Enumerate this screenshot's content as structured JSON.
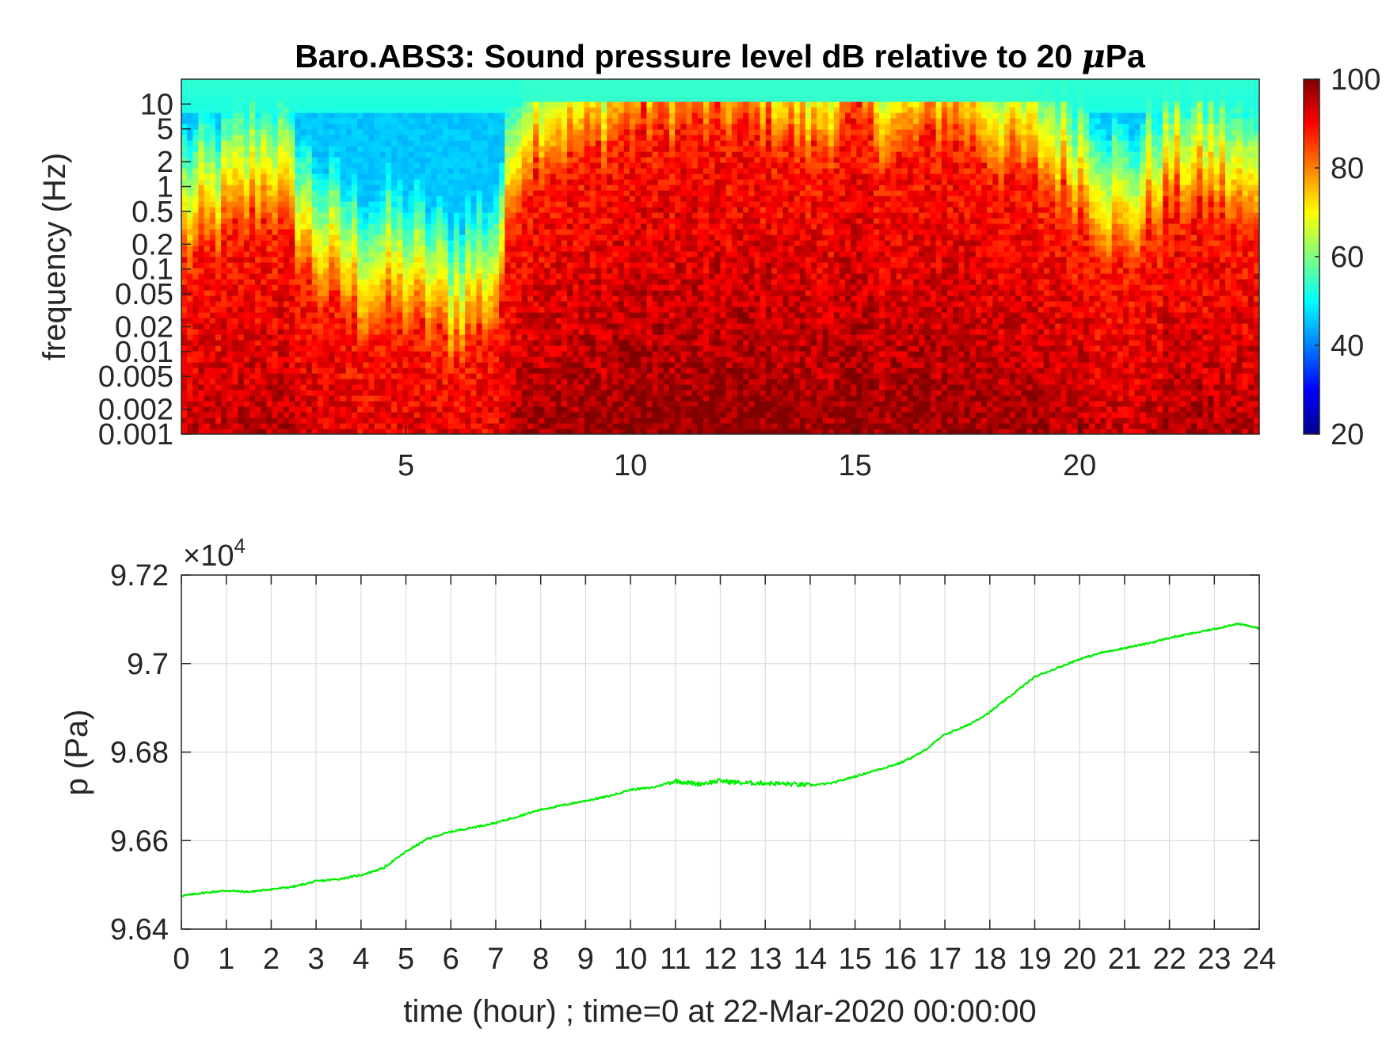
{
  "chart_data": [
    {
      "type": "heatmap",
      "title": "Baro.ABS3: Sound pressure level dB relative to 20 μPa",
      "title_prefix": "Baro.ABS3: Sound pressure level dB relative to 20 ",
      "title_mu": "μ",
      "title_suffix": "Pa",
      "ylabel": "frequency (Hz)",
      "y_scale": "log",
      "xlim": [
        0,
        24
      ],
      "ylim": [
        0.001,
        20
      ],
      "x_ticks": [
        5,
        10,
        15,
        20
      ],
      "y_ticks": [
        0.001,
        0.002,
        0.005,
        0.01,
        0.02,
        0.05,
        0.1,
        0.2,
        0.5,
        1,
        2,
        5,
        10
      ],
      "y_tick_labels": [
        "0.001",
        "0.002",
        "0.005",
        "0.01",
        "0.02",
        "0.05",
        "0.1",
        "0.2",
        "0.5",
        "1",
        "2",
        "5",
        "10"
      ],
      "colormap": "jet",
      "colorbar": {
        "range": [
          20,
          100
        ],
        "ticks": [
          20,
          40,
          60,
          80,
          100
        ],
        "labels": [
          "20",
          "40",
          "60",
          "80",
          "100"
        ]
      },
      "colors": {
        "high": "#8b0000",
        "mid": "#ffd400",
        "low": "#00d6e8",
        "min": "#00008f"
      },
      "time_profile": {
        "hours": [
          0,
          1,
          2,
          3,
          4,
          5,
          6,
          7,
          7.5,
          8,
          9,
          10,
          11,
          12,
          13,
          14,
          15,
          16,
          17,
          18,
          19,
          20,
          21,
          22,
          23,
          24
        ],
        "high_level_top_hz": [
          0.1,
          0.2,
          0.5,
          0.05,
          0.02,
          0.02,
          0.01,
          0.02,
          1,
          2,
          2,
          5,
          5,
          5,
          5,
          2,
          5,
          2,
          5,
          2,
          1,
          0.5,
          0.1,
          0.5,
          0.5,
          0.2
        ]
      }
    },
    {
      "type": "line",
      "ylabel": "p (Pa)",
      "xlabel": "time (hour) ; time=0 at 22-Mar-2020 00:00:00",
      "xlim": [
        0,
        24
      ],
      "ylim": [
        96400,
        97200
      ],
      "x_ticks": [
        0,
        1,
        2,
        3,
        4,
        5,
        6,
        7,
        8,
        9,
        10,
        11,
        12,
        13,
        14,
        15,
        16,
        17,
        18,
        19,
        20,
        21,
        22,
        23,
        24
      ],
      "x_tick_labels": [
        "0",
        "1",
        "2",
        "3",
        "4",
        "5",
        "6",
        "7",
        "8",
        "9",
        "10",
        "11",
        "12",
        "13",
        "14",
        "15",
        "16",
        "17",
        "18",
        "19",
        "20",
        "21",
        "22",
        "23",
        "24"
      ],
      "y_ticks": [
        96400,
        96600,
        96800,
        97000,
        97200
      ],
      "y_tick_labels": [
        "9.64",
        "9.66",
        "9.68",
        "9.7",
        "9.72"
      ],
      "y_exponent_base": "×10",
      "y_exponent_power": "4",
      "grid": true,
      "line_color": "#00ee00",
      "series": [
        {
          "x": [
            0,
            0.5,
            1,
            1.5,
            2,
            2.5,
            3,
            3.5,
            4,
            4.5,
            5,
            5.5,
            6,
            6.5,
            7,
            7.5,
            8,
            8.5,
            9,
            9.5,
            10,
            10.5,
            11,
            11.5,
            12,
            12.5,
            13,
            13.5,
            14,
            14.5,
            15,
            15.5,
            16,
            16.5,
            17,
            17.5,
            18,
            18.5,
            19,
            19.5,
            20,
            20.5,
            21,
            21.5,
            22,
            22.5,
            23,
            23.5,
            24
          ],
          "y": [
            96475,
            96482,
            96487,
            96484,
            96490,
            96496,
            96508,
            96513,
            96522,
            96538,
            96575,
            96605,
            96620,
            96630,
            96640,
            96655,
            96670,
            96680,
            96690,
            96700,
            96715,
            96720,
            96735,
            96728,
            96735,
            96730,
            96730,
            96728,
            96725,
            96730,
            96745,
            96760,
            96775,
            96800,
            96840,
            96860,
            96890,
            96930,
            96970,
            96990,
            97010,
            97025,
            97035,
            97045,
            97058,
            97068,
            97078,
            97090,
            97080
          ]
        }
      ]
    }
  ]
}
